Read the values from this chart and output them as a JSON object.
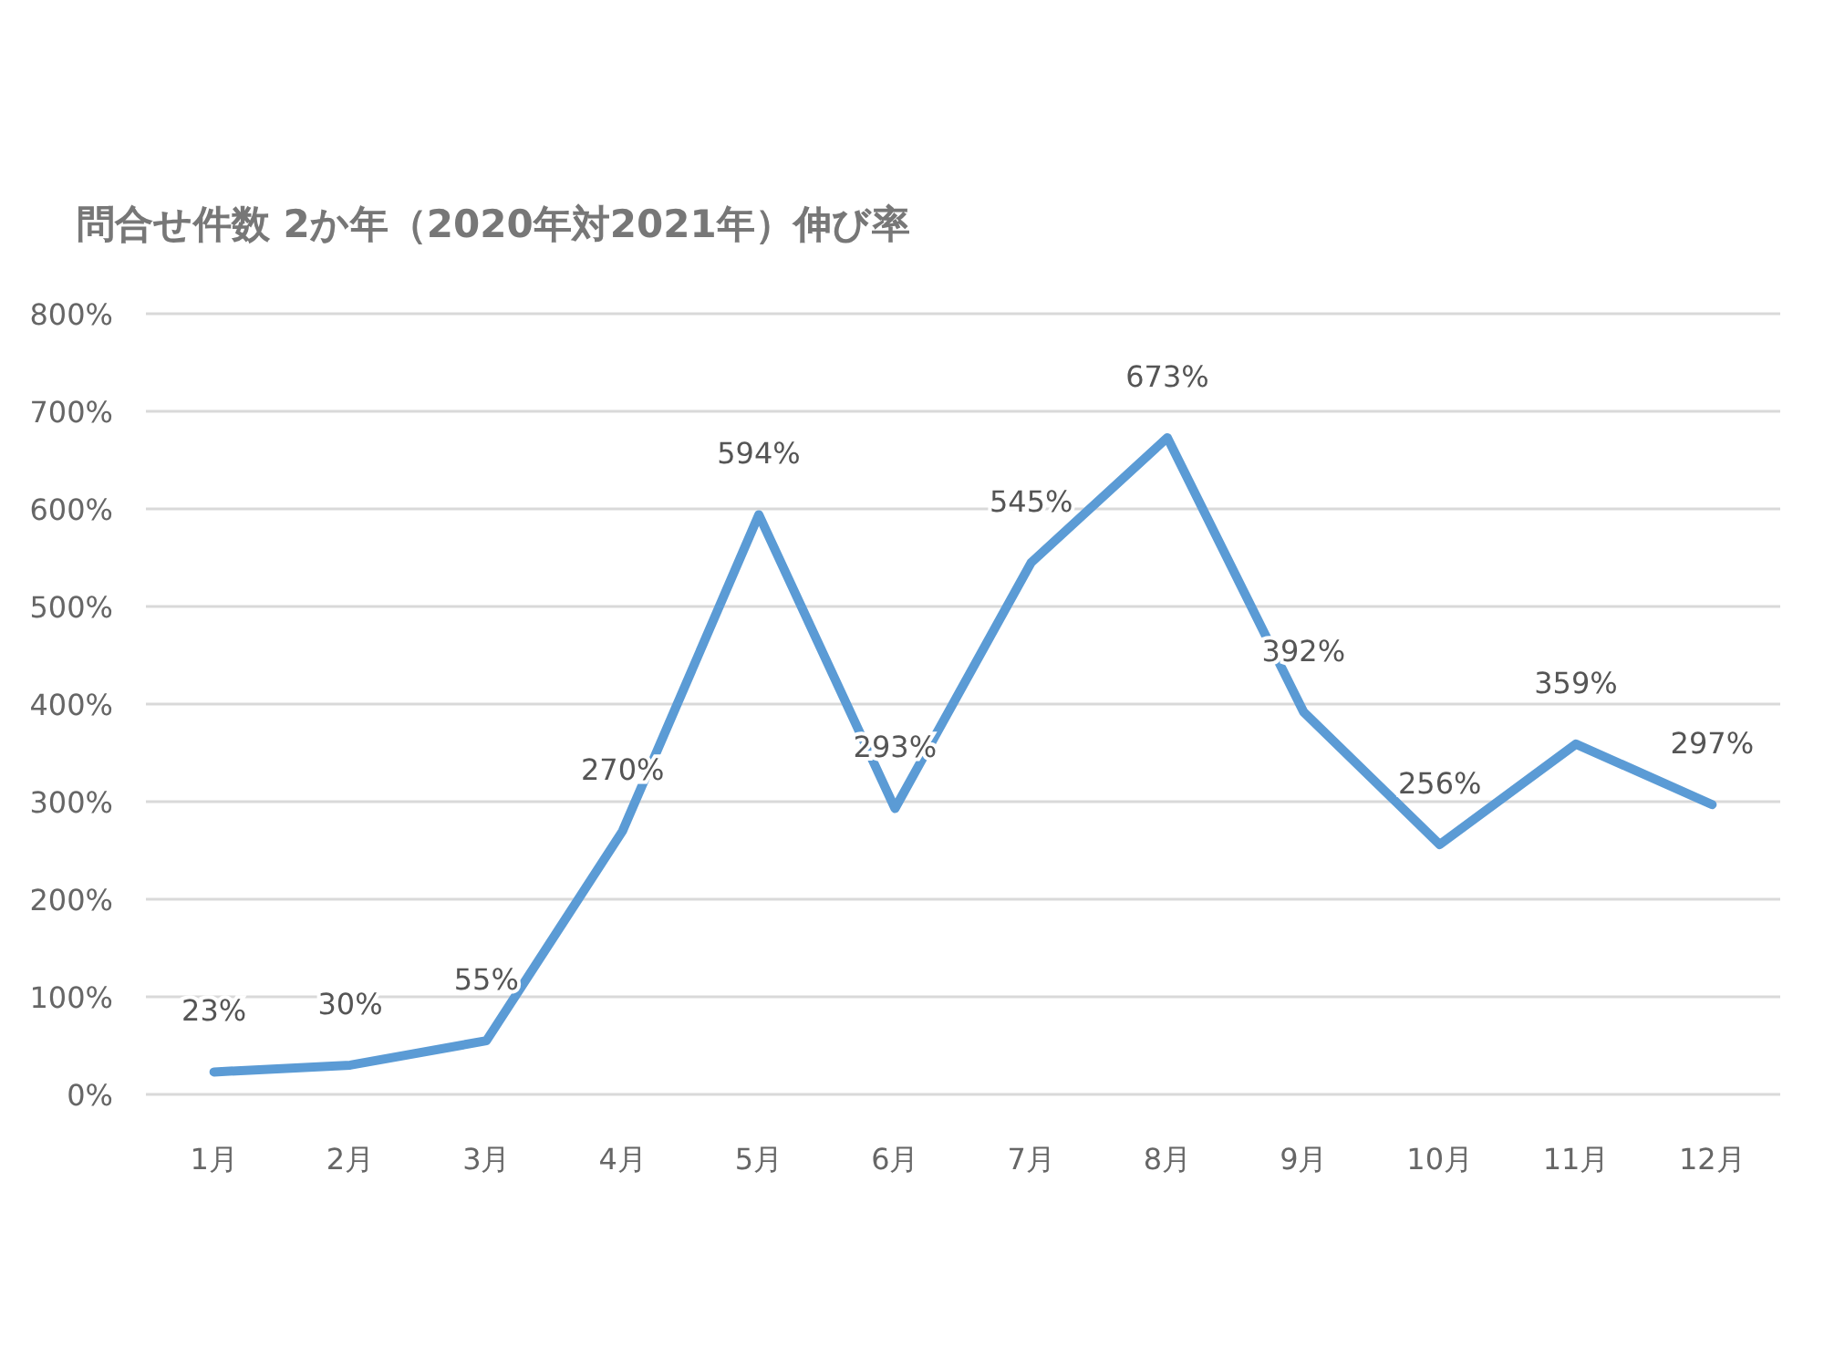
{
  "chart_data": {
    "type": "line",
    "title": "問合せ件数 2か年（2020年対2021年）伸び率",
    "categories": [
      "1月",
      "2月",
      "3月",
      "4月",
      "5月",
      "6月",
      "7月",
      "8月",
      "9月",
      "10月",
      "11月",
      "12月"
    ],
    "series": [
      {
        "color": "#5b9bd5",
        "values": [
          23,
          30,
          55,
          270,
          594,
          293,
          545,
          673,
          392,
          256,
          359,
          297
        ],
        "value_labels": [
          "23%",
          "30%",
          "55%",
          "270%",
          "594%",
          "293%",
          "545%",
          "673%",
          "392%",
          "256%",
          "359%",
          "297%"
        ]
      }
    ],
    "ylim": [
      0,
      800
    ],
    "yticks": [
      {
        "value": 0,
        "label": "0%"
      },
      {
        "value": 100,
        "label": "100%"
      },
      {
        "value": 200,
        "label": "200%"
      },
      {
        "value": 300,
        "label": "300%"
      },
      {
        "value": 400,
        "label": "400%"
      },
      {
        "value": 500,
        "label": "500%"
      },
      {
        "value": 600,
        "label": "600%"
      },
      {
        "value": 700,
        "label": "700%"
      },
      {
        "value": 800,
        "label": "800%"
      }
    ],
    "grid": "y",
    "marker": "none",
    "line_style": "solid"
  }
}
